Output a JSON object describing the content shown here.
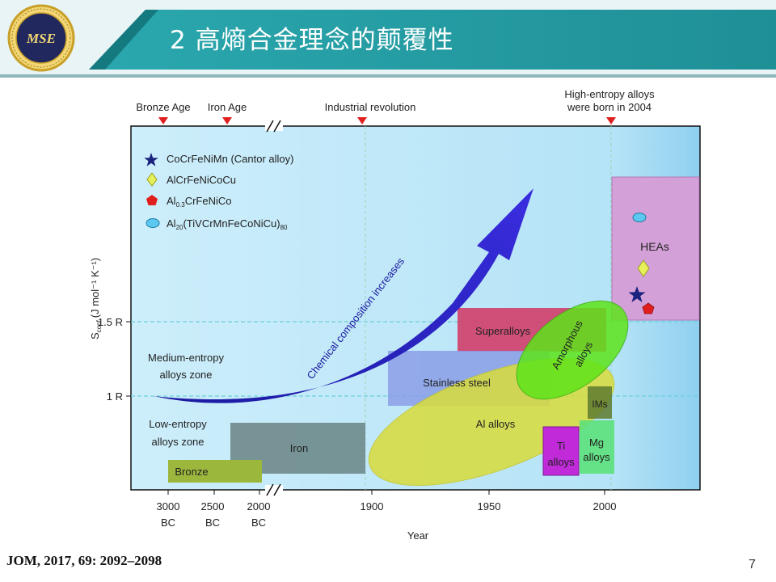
{
  "slide": {
    "title": "2  高熵合金理念的颠覆性",
    "logo_text": "MSE",
    "citation": "JOM, 2017, 69: 2092–2098",
    "page_number": "7"
  },
  "colors": {
    "header_teal": "#1f9aa2",
    "header_dark": "#0f6f76",
    "plot_bg": "#cfeefb",
    "plot_bg_right": "#9fd8f2"
  },
  "chart_data": {
    "type": "diagram",
    "title": "",
    "xlabel": "Year",
    "ylabel_main": "S",
    "ylabel_sub": "conf",
    "ylabel_units": "(J mol⁻¹ K⁻¹)",
    "x_ticks": [
      {
        "line1": "3000",
        "line2": "BC"
      },
      {
        "line1": "2500",
        "line2": "BC"
      },
      {
        "line1": "2000",
        "line2": "BC"
      },
      {
        "line1": "1900",
        "line2": ""
      },
      {
        "line1": "1950",
        "line2": ""
      },
      {
        "line1": "2000",
        "line2": ""
      }
    ],
    "y_ticks": [
      "1.5 R",
      "1 R"
    ],
    "eras": [
      {
        "label": "Bronze Age"
      },
      {
        "label": "Iron Age"
      },
      {
        "label": "Industrial revolution"
      },
      {
        "label": "High-entropy alloys",
        "label2": "were born in 2004"
      }
    ],
    "legend": [
      {
        "symbol": "star",
        "color": "#1a237e",
        "text": "CoCrFeNiMn (Cantor alloy)"
      },
      {
        "symbol": "diamond",
        "color": "#e6f05a",
        "text": "AlCrFeNiCoCu"
      },
      {
        "symbol": "pentagon",
        "color": "#e01e1e",
        "text_main": "Al",
        "text_sub": "0.3",
        "text_rest": "CrFeNiCo"
      },
      {
        "symbol": "ellipse",
        "color": "#5cc8f0",
        "text_main": "Al",
        "text_sub": "20",
        "text_rest": "(TiVCrMnFeCoNiCu)",
        "text_sub2": "80"
      }
    ],
    "zones": [
      {
        "line1": "Medium-entropy",
        "line2": "alloys zone"
      },
      {
        "line1": "Low-entropy",
        "line2": "alloys zone"
      }
    ],
    "regions": [
      {
        "name": "Bronze",
        "color": "#9cb83c"
      },
      {
        "name": "Iron",
        "color": "#6e8a8a"
      },
      {
        "name": "Stainless steel",
        "color": "#8b9ee6"
      },
      {
        "name": "Superalloys",
        "color": "#d0426c"
      },
      {
        "name": "Al alloys",
        "color": "#d9dc3a"
      },
      {
        "name": "Amorphous alloys",
        "line1": "Amorphous",
        "line2": "alloys",
        "color": "#5ee51a"
      },
      {
        "name": "IMs",
        "color": "#5e7a2e"
      },
      {
        "name": "Ti alloys",
        "line1": "Ti",
        "line2": "alloys",
        "color": "#c02ad8"
      },
      {
        "name": "Mg alloys",
        "line1": "Mg",
        "line2": "alloys",
        "color": "#5ce07a"
      },
      {
        "name": "HEAs",
        "color": "#d4a0d8"
      }
    ],
    "arrow_label": "Chemical composition increases",
    "gridlines": true
  }
}
